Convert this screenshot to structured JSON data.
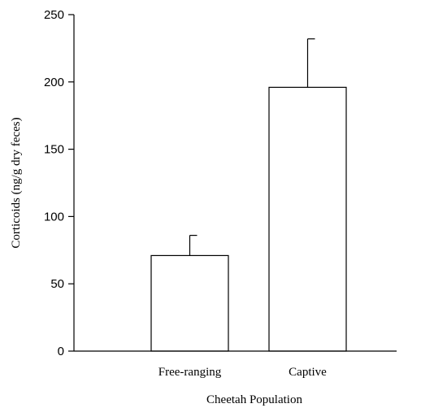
{
  "chart_data": {
    "type": "bar",
    "title": "",
    "xlabel": "Cheetah Population",
    "ylabel": "Corticoids (ng/g dry feces)",
    "ylim": [
      0,
      250
    ],
    "yticks": [
      0,
      50,
      100,
      150,
      200,
      250
    ],
    "categories": [
      "Free-ranging",
      "Captive"
    ],
    "values": [
      71,
      196
    ],
    "error_upper": [
      86,
      232
    ],
    "grid": false,
    "legend": "none",
    "colors": {
      "bar_fill": "#ffffff",
      "stroke": "#000000"
    }
  }
}
